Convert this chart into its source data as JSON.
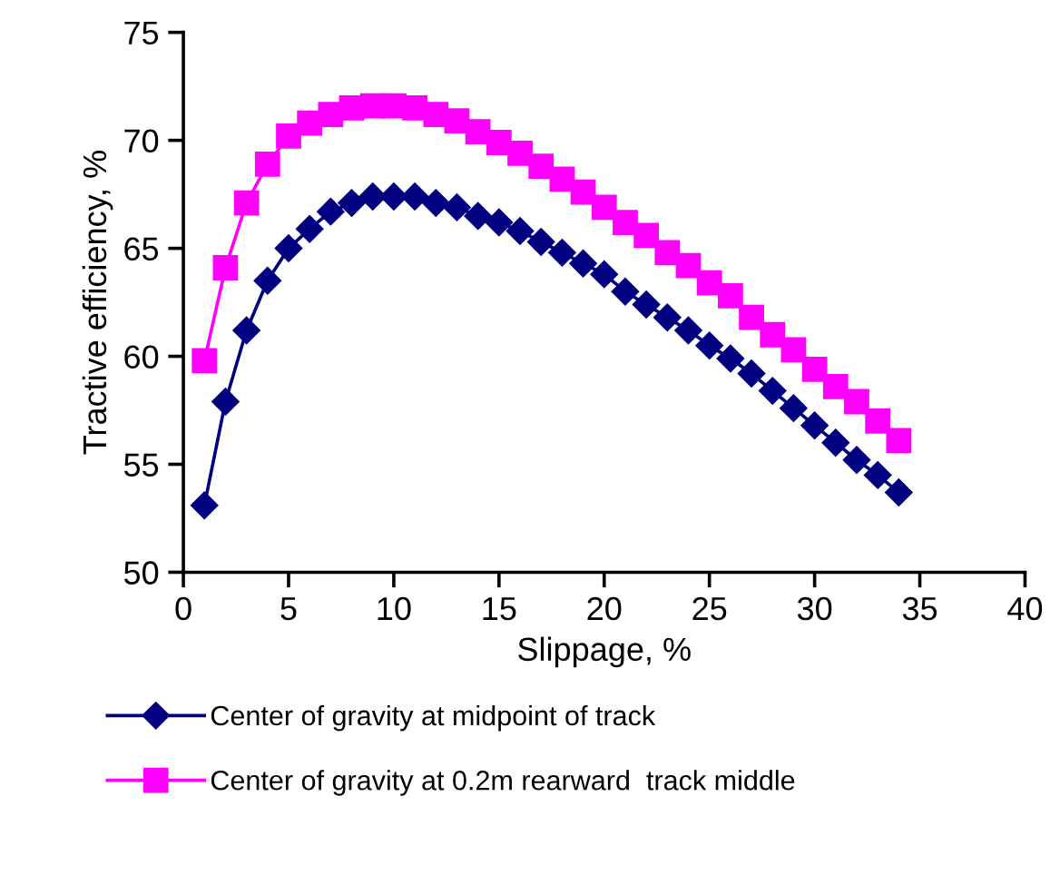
{
  "chart_data": {
    "type": "line",
    "xlabel": "Slippage, %",
    "ylabel": "Tractive efficiency, %",
    "xlim": [
      0,
      40
    ],
    "xticks": [
      0,
      5,
      10,
      15,
      20,
      25,
      30,
      35,
      40
    ],
    "ylim": [
      50,
      75
    ],
    "yticks": [
      50,
      55,
      60,
      65,
      70,
      75
    ],
    "grid": false,
    "legend": "bottom",
    "line_style": "solid",
    "series": [
      {
        "name": "Center of gravity at midpoint of track",
        "color": "#000080",
        "marker": "diamond",
        "x": [
          1,
          2,
          3,
          4,
          5,
          6,
          7,
          8,
          9,
          10,
          11,
          12,
          13,
          14,
          15,
          16,
          17,
          18,
          19,
          20,
          21,
          22,
          23,
          24,
          25,
          26,
          27,
          28,
          29,
          30,
          31,
          32,
          33,
          34
        ],
        "values": [
          53.1,
          57.9,
          61.2,
          63.5,
          65.0,
          65.9,
          66.7,
          67.1,
          67.4,
          67.4,
          67.4,
          67.1,
          66.9,
          66.5,
          66.2,
          65.8,
          65.3,
          64.8,
          64.3,
          63.8,
          63.0,
          62.4,
          61.8,
          61.2,
          60.5,
          59.9,
          59.2,
          58.4,
          57.6,
          56.8,
          56.0,
          55.2,
          54.5,
          53.7
        ]
      },
      {
        "name": "Center of gravity at 0.2m rearward  track middle",
        "color": "#ff00ff",
        "marker": "square",
        "x": [
          1,
          2,
          3,
          4,
          5,
          6,
          7,
          8,
          9,
          10,
          11,
          12,
          13,
          14,
          15,
          16,
          17,
          18,
          19,
          20,
          21,
          22,
          23,
          24,
          25,
          26,
          27,
          28,
          29,
          30,
          31,
          32,
          33,
          34
        ],
        "values": [
          59.8,
          64.1,
          67.1,
          68.9,
          70.2,
          70.8,
          71.2,
          71.5,
          71.6,
          71.6,
          71.5,
          71.2,
          70.9,
          70.4,
          69.9,
          69.4,
          68.8,
          68.2,
          67.6,
          66.9,
          66.2,
          65.6,
          64.8,
          64.2,
          63.4,
          62.8,
          61.8,
          61.0,
          60.3,
          59.4,
          58.6,
          57.9,
          57.0,
          56.1
        ]
      }
    ]
  }
}
